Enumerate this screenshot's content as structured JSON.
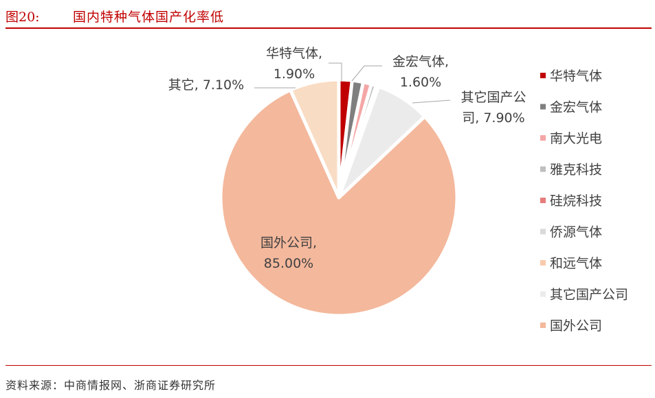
{
  "header": {
    "figure_number": "图20:",
    "title": "国内特种气体国产化率低"
  },
  "source": "资料来源：中商情报网、浙商证券研究所",
  "chart_data": {
    "type": "pie",
    "title": "",
    "slices": [
      {
        "name": "华特气体",
        "value": 1.9,
        "color": "#c00000",
        "label": "华特气体,\n1.90%"
      },
      {
        "name": "金宏气体",
        "value": 1.6,
        "color": "#7f7f7f",
        "label": "金宏气体,\n1.60%"
      },
      {
        "name": "南大光电",
        "value": 1.2,
        "color": "#f4a6a6",
        "label": ""
      },
      {
        "name": "雅克科技",
        "value": 0.7,
        "color": "#bfbfbf",
        "label": ""
      },
      {
        "name": "硅烷科技",
        "value": 0.2,
        "color": "#e77c7c",
        "label": ""
      },
      {
        "name": "侨源气体",
        "value": 0.1,
        "color": "#d9d9d9",
        "label": ""
      },
      {
        "name": "和远气体",
        "value": 0.1,
        "color": "#f8cbad",
        "label": ""
      },
      {
        "name": "其它国产公司",
        "value": 7.9,
        "color": "#ebebeb",
        "label": "其它国产公\n司, 7.90%"
      },
      {
        "name": "国外公司",
        "value": 85.0,
        "color": "#f4b89c",
        "label": "国外公司,\n85.00%"
      },
      {
        "name": "其它",
        "value": 7.1,
        "color": "#f9dcc4",
        "label": "其它, 7.10%"
      }
    ],
    "legend": {
      "position": "right",
      "items": [
        {
          "name": "华特气体",
          "color": "#c00000"
        },
        {
          "name": "金宏气体",
          "color": "#7f7f7f"
        },
        {
          "name": "南大光电",
          "color": "#f4a6a6"
        },
        {
          "name": "雅克科技",
          "color": "#bfbfbf"
        },
        {
          "name": "硅烷科技",
          "color": "#e77c7c"
        },
        {
          "name": "侨源气体",
          "color": "#d9d9d9"
        },
        {
          "name": "和远气体",
          "color": "#f8cbad"
        },
        {
          "name": "其它国产公司",
          "color": "#ebebeb"
        },
        {
          "name": "国外公司",
          "color": "#f4b89c"
        }
      ]
    }
  }
}
